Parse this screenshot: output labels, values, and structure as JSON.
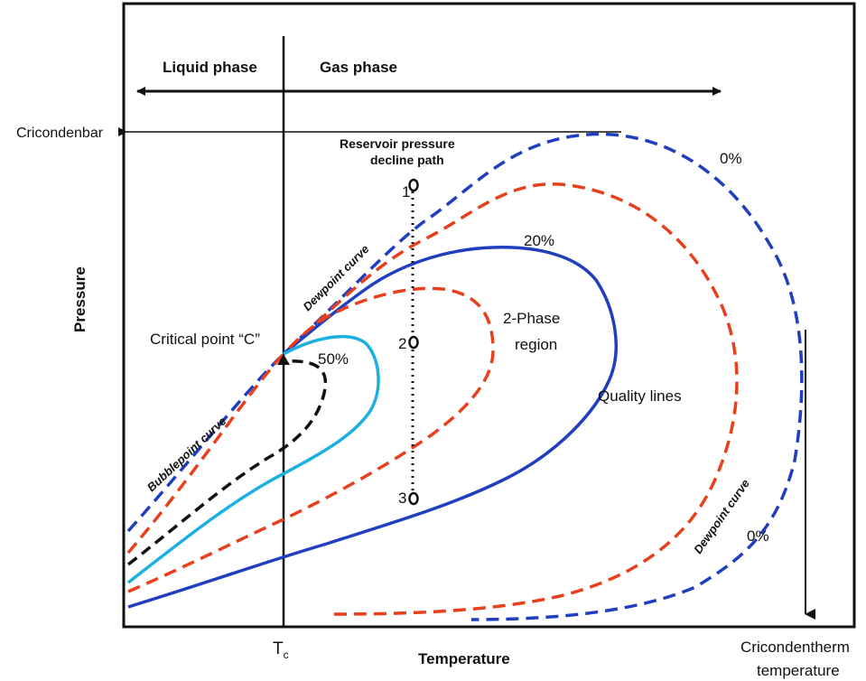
{
  "phases": {
    "liquid": "Liquid phase",
    "gas": "Gas phase"
  },
  "labels": {
    "cricondenbar": "Cricondenbar",
    "reservoir_path_line1": "Reservoir pressure",
    "reservoir_path_line2": "decline path",
    "point_1": "1",
    "point_2": "2",
    "point_3": "3",
    "dewpoint_curve_top": "Dewpoint curve",
    "dewpoint_curve_bottom": "Dewpoint curve",
    "bubblepoint_curve": "Bubblepoint curve",
    "critical_point": "Critical point “C”",
    "pct_0_top": "0%",
    "pct_0_bottom": "0%",
    "pct_20": "20%",
    "pct_50": "50%",
    "two_phase_line1": "2-Phase",
    "two_phase_line2": "region",
    "quality_lines": "Quality lines",
    "cricondentherm_line1": "Cricondentherm",
    "cricondentherm_line2": "temperature"
  },
  "axes": {
    "y_label": "Pressure",
    "x_label": "Temperature",
    "tc_main": "T",
    "tc_sub": "c"
  },
  "colors": {
    "blue_dashed": "#1f3fbf",
    "red_dashed": "#e8401c",
    "blue_solid": "#1f3fbf",
    "cyan_solid": "#1ab0e0",
    "black_dashed": "#111111"
  }
}
